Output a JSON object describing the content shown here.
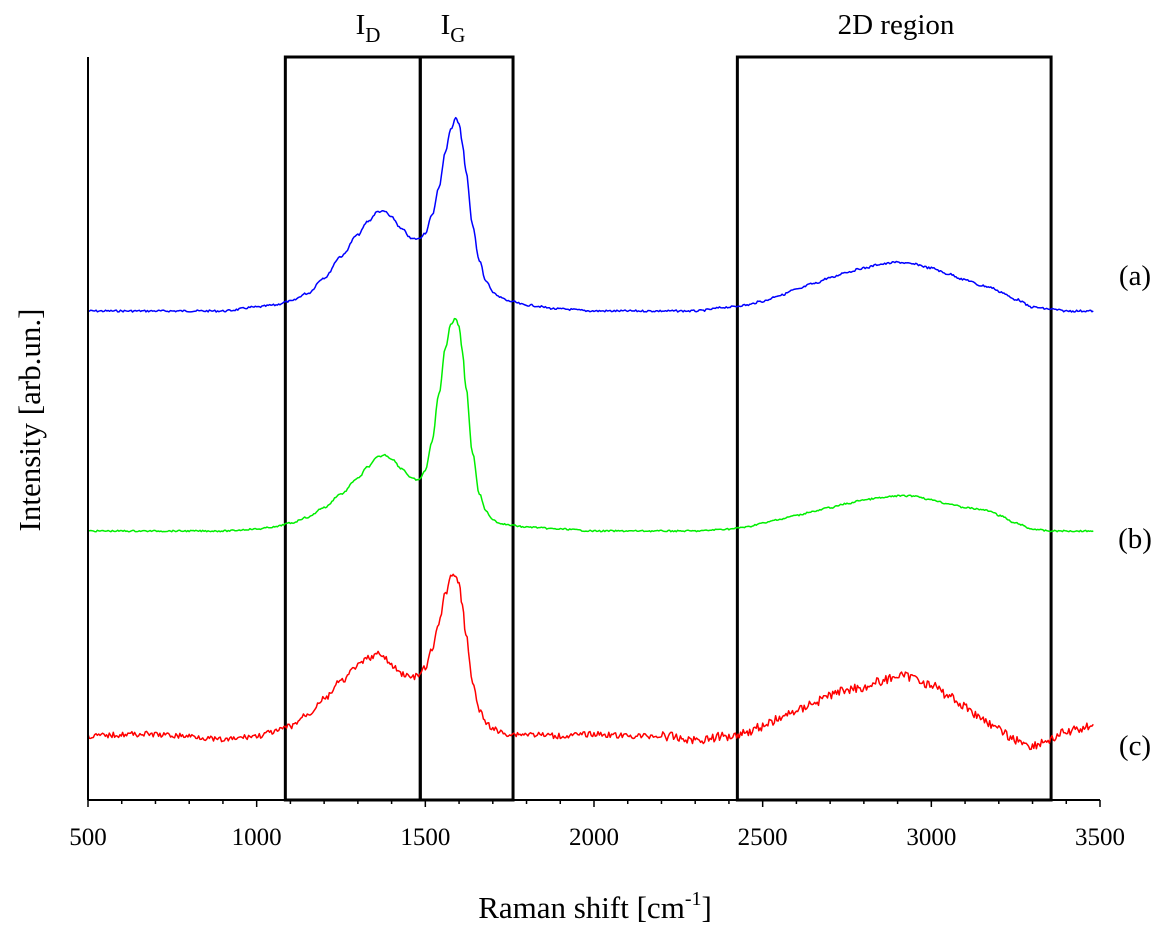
{
  "chart_data": {
    "type": "line",
    "xlabel_main": "Raman shift [cm",
    "xlabel_sup": "-1",
    "xlabel_end": "]",
    "ylabel": "Intensity [arb.un.]",
    "xlim": [
      500,
      3500
    ],
    "x_ticks": [
      "500",
      "1000",
      "1500",
      "2000",
      "2500",
      "3000",
      "3500"
    ],
    "colors": {
      "a": "#0000ff",
      "b": "#00ee00",
      "c": "#ff0000"
    },
    "regions": [
      {
        "label_main": "I",
        "label_sub": "D",
        "x0": 1085,
        "x1": 1485
      },
      {
        "label_main": "I",
        "label_sub": "G",
        "x0": 1485,
        "x1": 1760
      },
      {
        "label_main": "2D region",
        "label_sub": "",
        "x0": 2425,
        "x1": 3355
      }
    ],
    "series": [
      {
        "name": "(a)",
        "color": "#0000ff",
        "x": [
          500,
          700,
          900,
          1000,
          1050,
          1100,
          1150,
          1200,
          1250,
          1300,
          1330,
          1360,
          1380,
          1400,
          1430,
          1460,
          1480,
          1500,
          1520,
          1540,
          1560,
          1575,
          1590,
          1600,
          1610,
          1620,
          1640,
          1660,
          1680,
          1700,
          1720,
          1750,
          1800,
          1900,
          2000,
          2100,
          2200,
          2300,
          2400,
          2450,
          2500,
          2550,
          2600,
          2650,
          2700,
          2750,
          2800,
          2850,
          2900,
          2950,
          3000,
          3050,
          3100,
          3150,
          3180,
          3200,
          3250,
          3300,
          3350,
          3400,
          3450,
          3480
        ],
        "y": [
          0.0,
          0.0,
          0.0,
          0.02,
          0.03,
          0.05,
          0.09,
          0.17,
          0.28,
          0.39,
          0.46,
          0.51,
          0.51,
          0.48,
          0.42,
          0.37,
          0.37,
          0.4,
          0.49,
          0.63,
          0.82,
          0.93,
          0.99,
          0.96,
          0.86,
          0.72,
          0.44,
          0.26,
          0.15,
          0.1,
          0.07,
          0.05,
          0.03,
          0.01,
          0.0,
          0.0,
          0.0,
          0.0,
          0.02,
          0.03,
          0.05,
          0.08,
          0.11,
          0.14,
          0.17,
          0.2,
          0.22,
          0.24,
          0.25,
          0.24,
          0.22,
          0.19,
          0.16,
          0.13,
          0.12,
          0.1,
          0.06,
          0.02,
          0.01,
          0.0,
          0.0,
          0.0
        ]
      },
      {
        "name": "(b)",
        "color": "#00ee00",
        "x": [
          500,
          700,
          900,
          1000,
          1050,
          1100,
          1150,
          1200,
          1250,
          1300,
          1330,
          1360,
          1380,
          1400,
          1430,
          1460,
          1480,
          1500,
          1520,
          1540,
          1560,
          1575,
          1590,
          1600,
          1610,
          1620,
          1640,
          1660,
          1680,
          1700,
          1720,
          1750,
          1800,
          1900,
          2000,
          2100,
          2200,
          2300,
          2400,
          2450,
          2500,
          2550,
          2600,
          2650,
          2700,
          2750,
          2800,
          2850,
          2900,
          2950,
          3000,
          3050,
          3100,
          3150,
          3180,
          3200,
          3250,
          3300,
          3350,
          3400,
          3450,
          3480
        ],
        "y": [
          0.0,
          0.0,
          0.0,
          0.01,
          0.02,
          0.04,
          0.07,
          0.12,
          0.19,
          0.27,
          0.33,
          0.38,
          0.39,
          0.37,
          0.32,
          0.27,
          0.26,
          0.31,
          0.46,
          0.7,
          0.94,
          1.06,
          1.09,
          1.05,
          0.92,
          0.74,
          0.4,
          0.19,
          0.1,
          0.06,
          0.04,
          0.03,
          0.02,
          0.01,
          0.0,
          0.0,
          0.0,
          0.0,
          0.01,
          0.02,
          0.04,
          0.06,
          0.08,
          0.1,
          0.12,
          0.14,
          0.16,
          0.17,
          0.18,
          0.18,
          0.16,
          0.14,
          0.12,
          0.11,
          0.1,
          0.08,
          0.04,
          0.01,
          0.0,
          0.0,
          0.0,
          0.0
        ]
      },
      {
        "name": "(c)",
        "color": "#ff0000",
        "x": [
          500,
          650,
          800,
          900,
          1000,
          1050,
          1100,
          1150,
          1200,
          1250,
          1300,
          1330,
          1360,
          1380,
          1400,
          1430,
          1460,
          1480,
          1500,
          1520,
          1540,
          1560,
          1575,
          1590,
          1600,
          1610,
          1620,
          1640,
          1660,
          1680,
          1700,
          1720,
          1750,
          1800,
          1900,
          2000,
          2100,
          2200,
          2300,
          2400,
          2450,
          2500,
          2550,
          2600,
          2650,
          2700,
          2750,
          2800,
          2850,
          2900,
          2950,
          3000,
          3050,
          3100,
          3150,
          3200,
          3250,
          3300,
          3350,
          3400,
          3450,
          3480
        ],
        "y": [
          0.0,
          0.01,
          0.0,
          -0.02,
          0.0,
          0.02,
          0.05,
          0.11,
          0.19,
          0.28,
          0.36,
          0.4,
          0.42,
          0.4,
          0.36,
          0.32,
          0.3,
          0.31,
          0.35,
          0.44,
          0.58,
          0.73,
          0.82,
          0.83,
          0.78,
          0.66,
          0.52,
          0.28,
          0.13,
          0.07,
          0.04,
          0.02,
          0.01,
          0.01,
          0.0,
          0.01,
          0.0,
          0.0,
          -0.02,
          0.0,
          0.02,
          0.05,
          0.09,
          0.13,
          0.17,
          0.21,
          0.24,
          0.25,
          0.28,
          0.31,
          0.3,
          0.26,
          0.21,
          0.15,
          0.09,
          0.03,
          -0.02,
          -0.05,
          -0.02,
          0.02,
          0.04,
          0.06
        ]
      }
    ]
  }
}
